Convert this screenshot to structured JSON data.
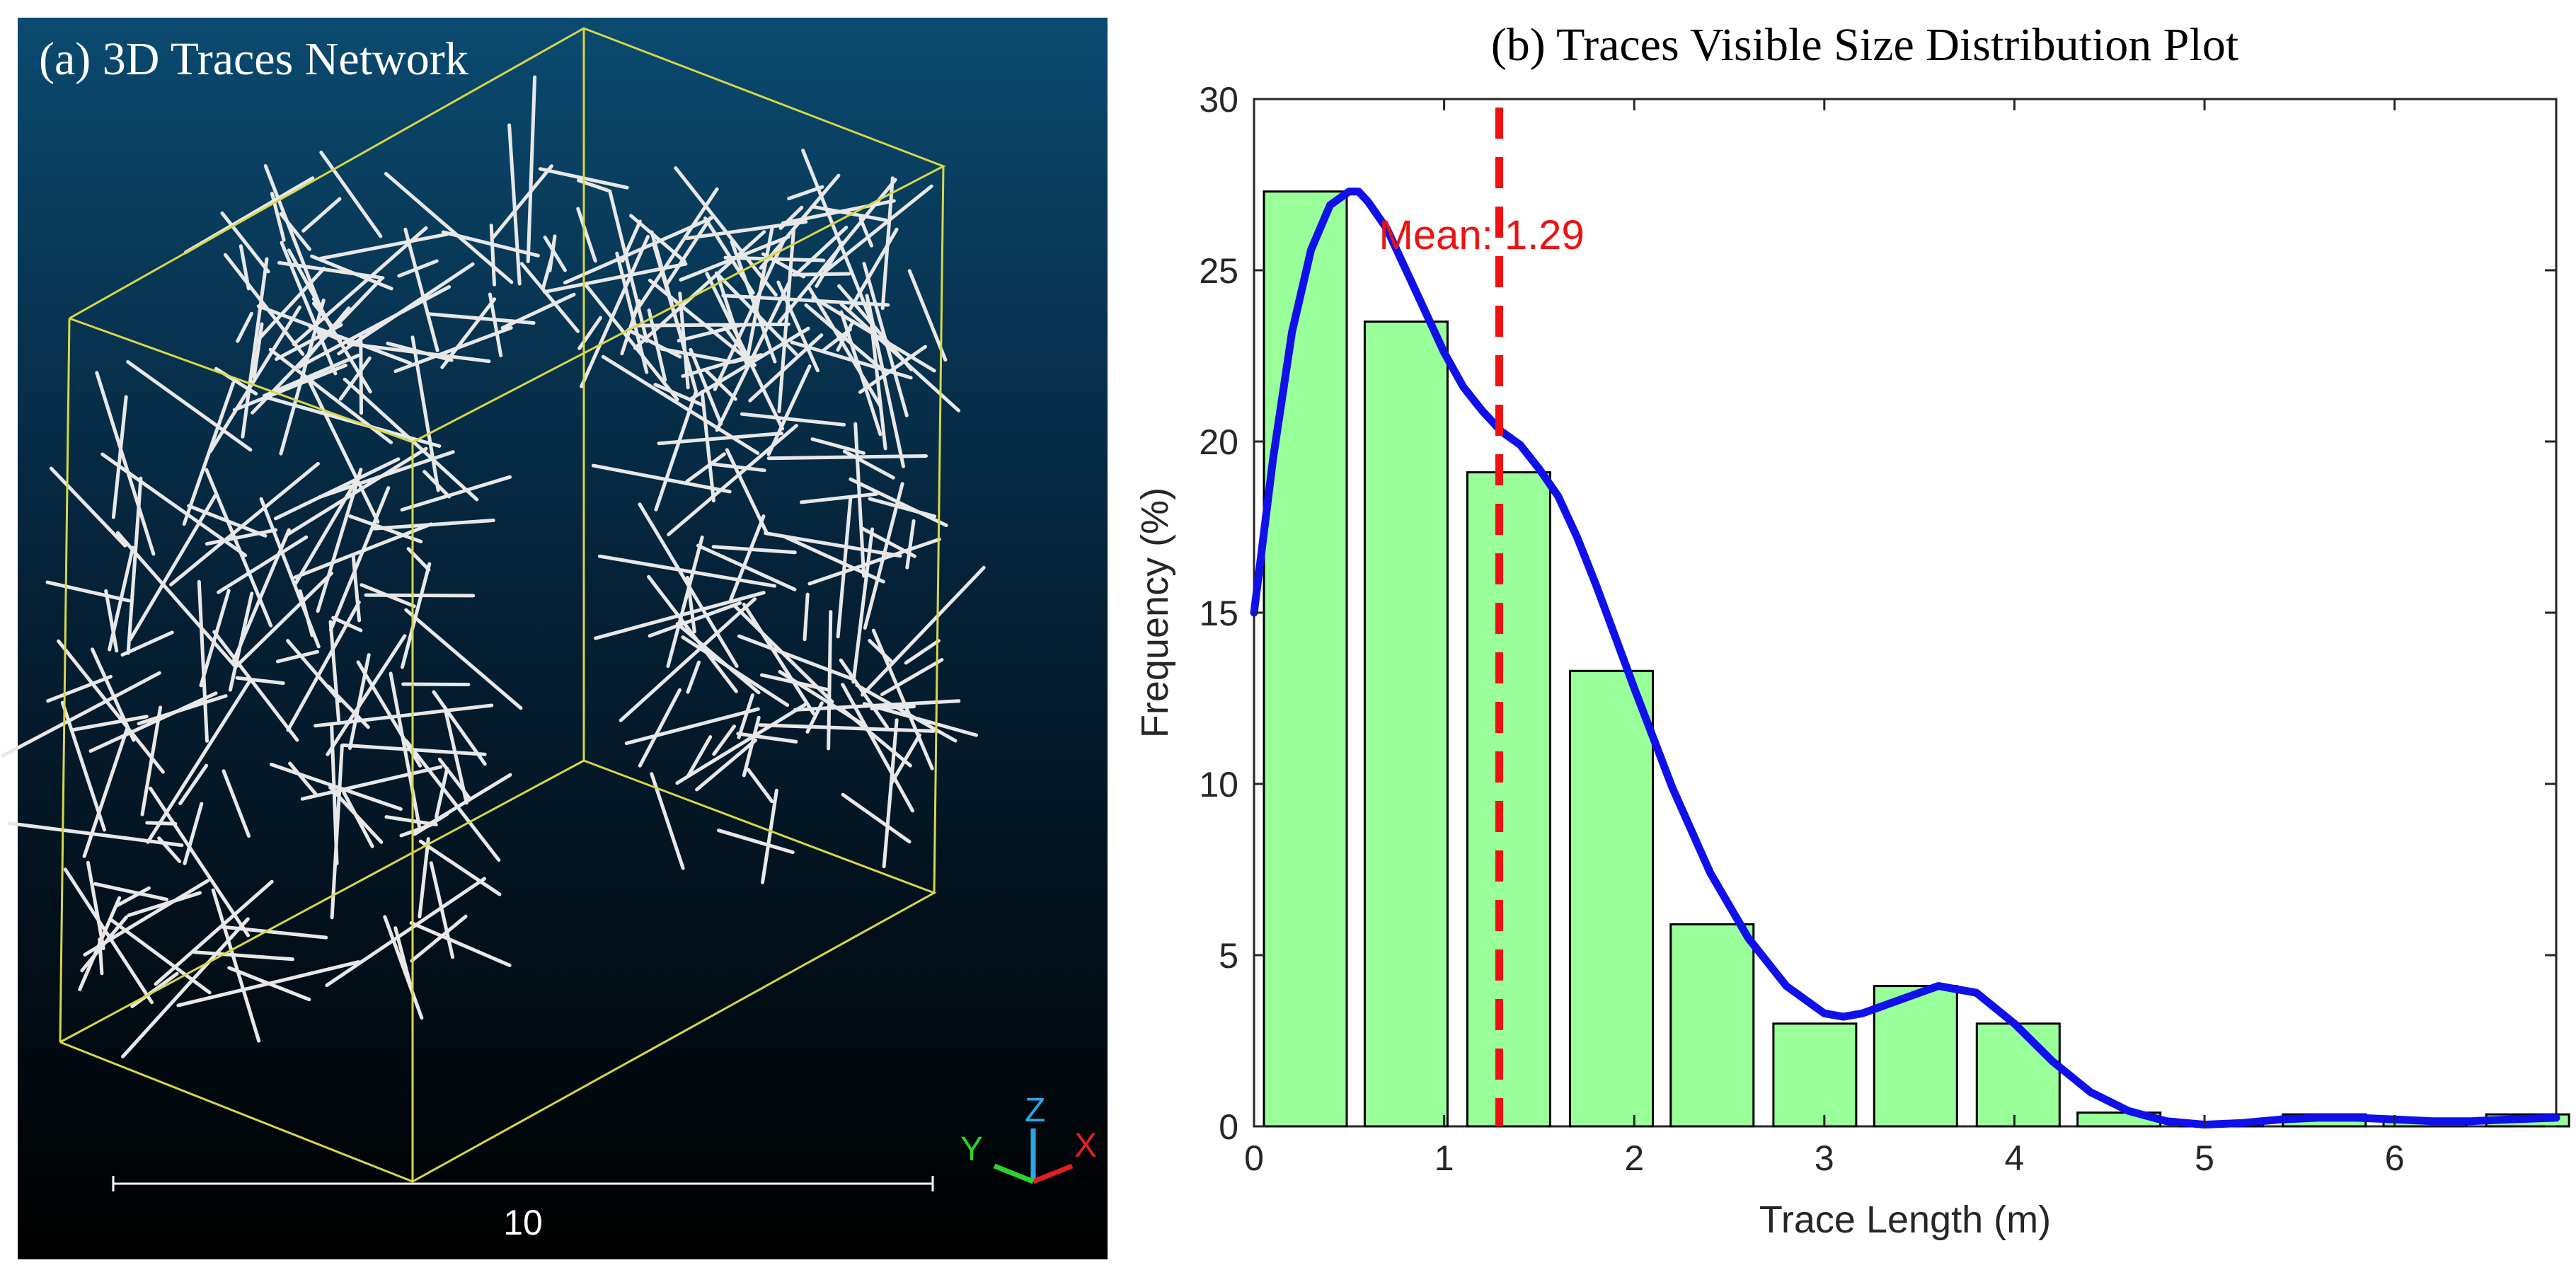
{
  "panel_a": {
    "title": "(a) 3D Traces Network",
    "scale_label": "10",
    "axes": {
      "x": "X",
      "y": "Y",
      "z": "Z"
    },
    "colors": {
      "background_top": "#0b4a70",
      "background_bottom": "#000000",
      "box": "#d6d64a",
      "traces": "#e8e8e8",
      "x_axis": "#e02020",
      "y_axis": "#2ad42a",
      "z_axis": "#29a8e8"
    }
  },
  "panel_b": {
    "title": "(b) Traces Visible Size Distribution Plot"
  },
  "chart_data": {
    "type": "bar",
    "title": "(b) Traces Visible Size Distribution Plot",
    "xlabel": "Trace Length (m)",
    "ylabel": "Frequency (%)",
    "xlim": [
      0,
      6.85
    ],
    "ylim": [
      0,
      30
    ],
    "xticks": [
      "0",
      "1",
      "2",
      "3",
      "4",
      "5",
      "6"
    ],
    "yticks": [
      "0",
      "5",
      "10",
      "15",
      "20",
      "25",
      "30"
    ],
    "bin_width": 0.5357,
    "bins": [
      {
        "center": 0.27,
        "value": 27.3
      },
      {
        "center": 0.8,
        "value": 23.5
      },
      {
        "center": 1.34,
        "value": 19.1
      },
      {
        "center": 1.88,
        "value": 13.3
      },
      {
        "center": 2.41,
        "value": 5.9
      },
      {
        "center": 2.95,
        "value": 3.0
      },
      {
        "center": 3.48,
        "value": 4.1
      },
      {
        "center": 4.02,
        "value": 3.0
      },
      {
        "center": 4.55,
        "value": 0.4
      },
      {
        "center": 5.09,
        "value": 0.1
      },
      {
        "center": 5.63,
        "value": 0.35
      },
      {
        "center": 6.16,
        "value": 0.15
      },
      {
        "center": 6.7,
        "value": 0.35
      }
    ],
    "density_curve": {
      "x": [
        0.0,
        0.1,
        0.2,
        0.3,
        0.4,
        0.5,
        0.55,
        0.6,
        0.7,
        0.8,
        0.9,
        1.0,
        1.1,
        1.2,
        1.3,
        1.4,
        1.5,
        1.6,
        1.7,
        1.8,
        1.9,
        2.0,
        2.2,
        2.4,
        2.6,
        2.8,
        3.0,
        3.1,
        3.2,
        3.4,
        3.6,
        3.8,
        4.0,
        4.2,
        4.4,
        4.6,
        4.8,
        5.0,
        5.2,
        5.4,
        5.6,
        5.8,
        6.0,
        6.2,
        6.4,
        6.6,
        6.85
      ],
      "y": [
        15.0,
        19.5,
        23.2,
        25.6,
        26.9,
        27.3,
        27.3,
        27.0,
        26.2,
        25.0,
        23.8,
        22.6,
        21.6,
        20.9,
        20.3,
        19.9,
        19.2,
        18.4,
        17.2,
        15.8,
        14.3,
        12.8,
        9.9,
        7.4,
        5.5,
        4.1,
        3.3,
        3.2,
        3.3,
        3.7,
        4.1,
        3.9,
        3.0,
        1.9,
        1.0,
        0.45,
        0.15,
        0.05,
        0.1,
        0.2,
        0.25,
        0.25,
        0.2,
        0.15,
        0.15,
        0.2,
        0.25
      ]
    },
    "mean": {
      "value": 1.29,
      "label": "Mean: 1.29"
    },
    "colors": {
      "bar_fill": "#99ff99",
      "bar_stroke": "#000000",
      "curve": "#1010e8",
      "mean_line": "#ee1111"
    },
    "grid": false,
    "legend": "none"
  }
}
